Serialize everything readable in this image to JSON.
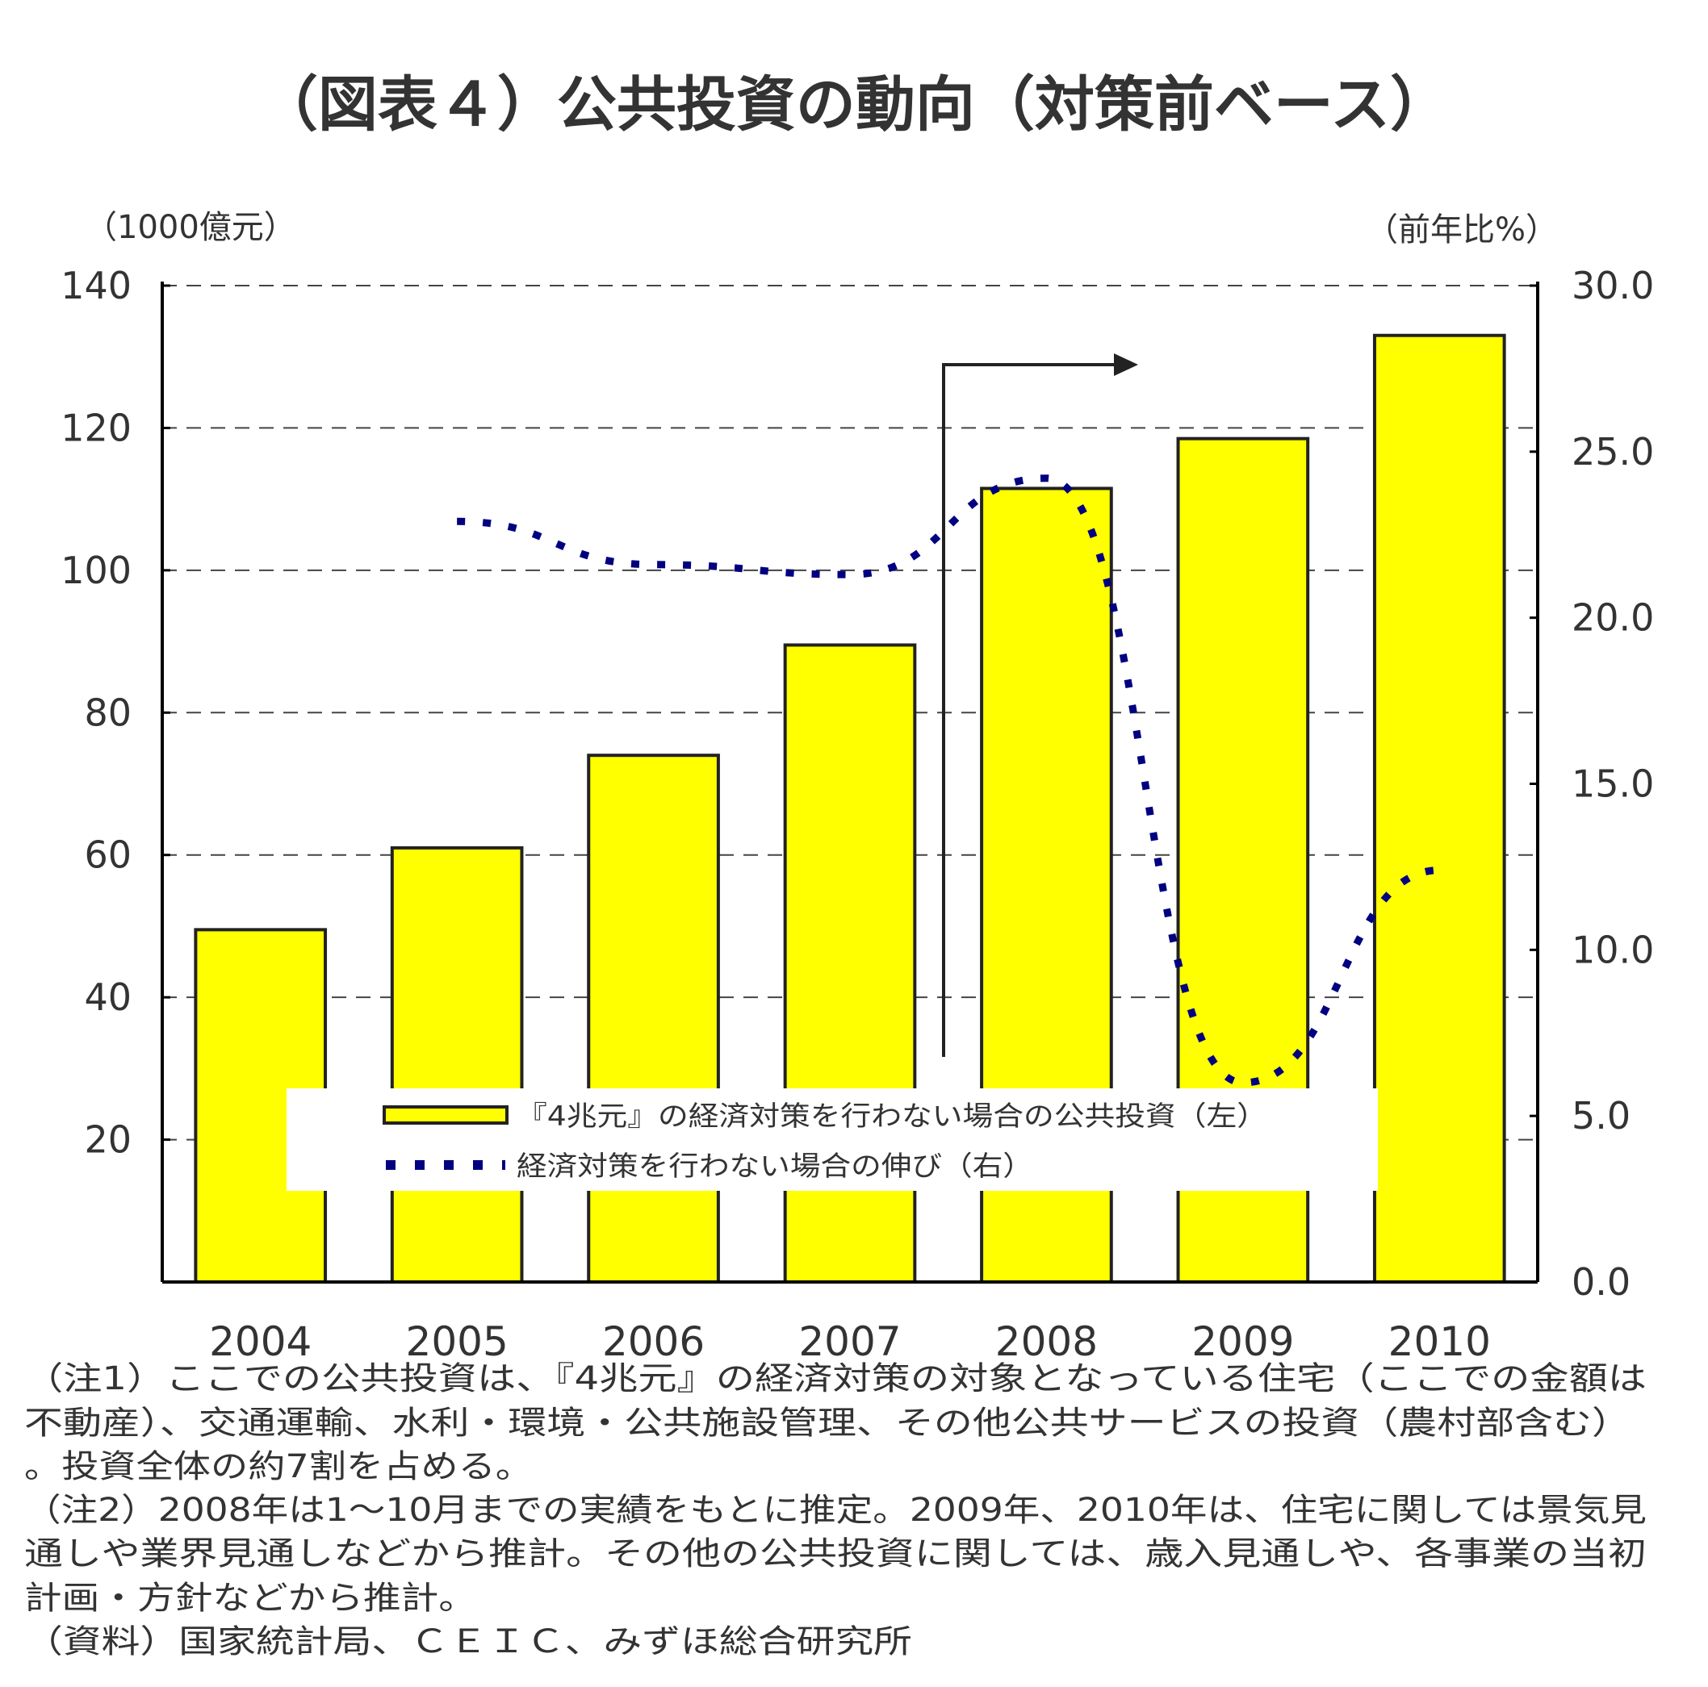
{
  "chart_data": {
    "type": "bar+line",
    "title": "（図表４）公共投資の動向（対策前ベース）",
    "ylabel_left": "（1000億元）",
    "ylabel_right": "（前年比%）",
    "categories": [
      "2004",
      "2005",
      "2006",
      "2007",
      "2008",
      "2009",
      "2010"
    ],
    "ylim_left": [
      0,
      140
    ],
    "yticks_left": [
      "140",
      "120",
      "100",
      "80",
      "60",
      "40",
      "20"
    ],
    "ylim_right": [
      0,
      30
    ],
    "yticks_right": [
      "30.0",
      "25.0",
      "20.0",
      "15.0",
      "10.0",
      "5.0",
      "0.0"
    ],
    "grid": "horizontal dashed",
    "series": [
      {
        "name": "『4兆元』の経済対策を行わない場合の公共投資（左）",
        "type": "bar",
        "axis": "left",
        "color": "#ffff00",
        "values": [
          49.5,
          61,
          74,
          89.5,
          111.5,
          118.5,
          133
        ]
      },
      {
        "name": "経済対策を行わない場合の伸び（右）",
        "type": "line",
        "axis": "right",
        "style": "dotted",
        "color": "#000080",
        "values": [
          null,
          22.9,
          21.6,
          21.3,
          24.2,
          6.0,
          12.4
        ]
      }
    ],
    "annotation": "arrow from 2008 (forecast period)",
    "legend_position": "bottom-center inside plot"
  },
  "notes": [
    "（注1）ここでの公共投資は、『4兆元』の経済対策の対象となっている住宅（ここでの金額は",
    "不動産）、交通運輸、水利・環境・公共施設管理、その他公共サービスの投資（農村部含む）",
    "。投資全体の約7割を占める。",
    "（注2）2008年は1～10月までの実績をもとに推定。2009年、2010年は、住宅に関しては景気見",
    "通しや業界見通しなどから推計。その他の公共投資に関しては、歳入見通しや、各事業の当初",
    "計画・方針などから推計。",
    "（資料）国家統計局、ＣＥＩＣ、みずほ総合研究所"
  ]
}
